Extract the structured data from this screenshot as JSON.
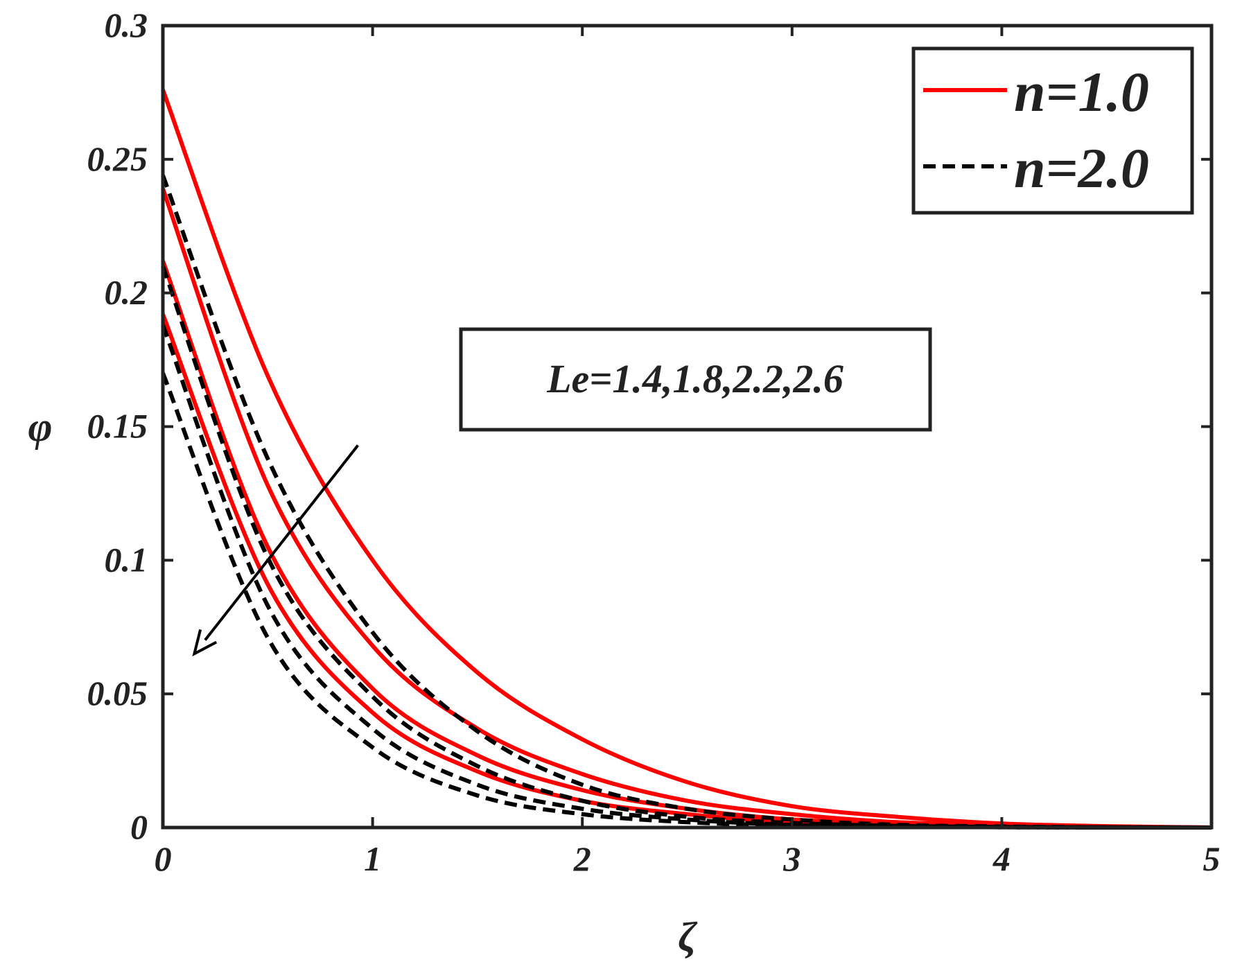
{
  "chart_data": {
    "type": "line",
    "xlabel": "ζ",
    "ylabel": "φ",
    "xlim": [
      0,
      5
    ],
    "ylim": [
      0,
      0.3
    ],
    "xticks": [
      0,
      1,
      2,
      3,
      4,
      5
    ],
    "xtick_labels": [
      "0",
      "1",
      "2",
      "3",
      "4",
      "5"
    ],
    "yticks": [
      0,
      0.05,
      0.1,
      0.15,
      0.2,
      0.25,
      0.3
    ],
    "ytick_labels": [
      "0",
      "0.05",
      "0.1",
      "0.15",
      "0.2",
      "0.25",
      "0.3"
    ],
    "grid": false,
    "legend": {
      "placement": "top-right",
      "entries": [
        {
          "label": "n=1.0",
          "color": "#ff0000",
          "dash": "solid"
        },
        {
          "label": "n=2.0",
          "color": "#000000",
          "dash": "dashed"
        }
      ]
    },
    "annotation": {
      "text": "Le=1.4,1.8,2.2,2.6",
      "arrow_from": [
        0.93,
        0.143
      ],
      "arrow_to": [
        0.15,
        0.065
      ]
    },
    "series": [
      {
        "group": "n=1.0",
        "color": "#ff0000",
        "dash": "solid",
        "x": [
          0,
          0.5,
          1.0,
          1.5,
          2.0,
          2.5,
          3.0,
          3.5,
          4.0,
          4.5,
          5.0
        ],
        "y": [
          0.276,
          0.169,
          0.1,
          0.058,
          0.033,
          0.017,
          0.008,
          0.004,
          0.0015,
          0.0005,
          0.0
        ]
      },
      {
        "group": "n=1.0",
        "color": "#ff0000",
        "dash": "solid",
        "x": [
          0,
          0.5,
          1.0,
          1.5,
          2.0,
          2.5,
          3.0,
          3.5,
          4.0,
          4.5,
          5.0
        ],
        "y": [
          0.239,
          0.128,
          0.068,
          0.037,
          0.02,
          0.01,
          0.005,
          0.002,
          0.001,
          0.0003,
          0.0
        ]
      },
      {
        "group": "n=1.0",
        "color": "#ff0000",
        "dash": "solid",
        "x": [
          0,
          0.5,
          1.0,
          1.5,
          2.0,
          2.5,
          3.0,
          3.5,
          4.0,
          4.5,
          5.0
        ],
        "y": [
          0.212,
          0.105,
          0.052,
          0.027,
          0.014,
          0.007,
          0.003,
          0.0015,
          0.0006,
          0.0002,
          0.0
        ]
      },
      {
        "group": "n=1.0",
        "color": "#ff0000",
        "dash": "solid",
        "x": [
          0,
          0.5,
          1.0,
          1.5,
          2.0,
          2.5,
          3.0,
          3.5,
          4.0,
          4.5,
          5.0
        ],
        "y": [
          0.192,
          0.091,
          0.043,
          0.021,
          0.01,
          0.005,
          0.002,
          0.001,
          0.0004,
          0.0001,
          0.0
        ]
      },
      {
        "group": "n=2.0",
        "color": "#000000",
        "dash": "dashed",
        "x": [
          0,
          0.5,
          1.0,
          1.5,
          2.0,
          2.5,
          3.0,
          3.5,
          4.0,
          4.5,
          5.0
        ],
        "y": [
          0.244,
          0.138,
          0.073,
          0.036,
          0.016,
          0.007,
          0.003,
          0.001,
          0.0004,
          0.0001,
          0.0
        ]
      },
      {
        "group": "n=2.0",
        "color": "#000000",
        "dash": "dashed",
        "x": [
          0,
          0.5,
          1.0,
          1.5,
          2.0,
          2.5,
          3.0,
          3.5,
          4.0,
          4.5,
          5.0
        ],
        "y": [
          0.21,
          0.101,
          0.049,
          0.023,
          0.01,
          0.004,
          0.0017,
          0.0006,
          0.0002,
          0.0001,
          0.0
        ]
      },
      {
        "group": "n=2.0",
        "color": "#000000",
        "dash": "dashed",
        "x": [
          0,
          0.5,
          1.0,
          1.5,
          2.0,
          2.5,
          3.0,
          3.5,
          4.0,
          4.5,
          5.0
        ],
        "y": [
          0.188,
          0.083,
          0.037,
          0.016,
          0.007,
          0.003,
          0.001,
          0.0004,
          0.0001,
          0.0,
          0.0
        ]
      },
      {
        "group": "n=2.0",
        "color": "#000000",
        "dash": "dashed",
        "x": [
          0,
          0.5,
          1.0,
          1.5,
          2.0,
          2.5,
          3.0,
          3.5,
          4.0,
          4.5,
          5.0
        ],
        "y": [
          0.17,
          0.071,
          0.03,
          0.012,
          0.005,
          0.002,
          0.0008,
          0.0003,
          0.0001,
          0.0,
          0.0
        ]
      }
    ]
  }
}
